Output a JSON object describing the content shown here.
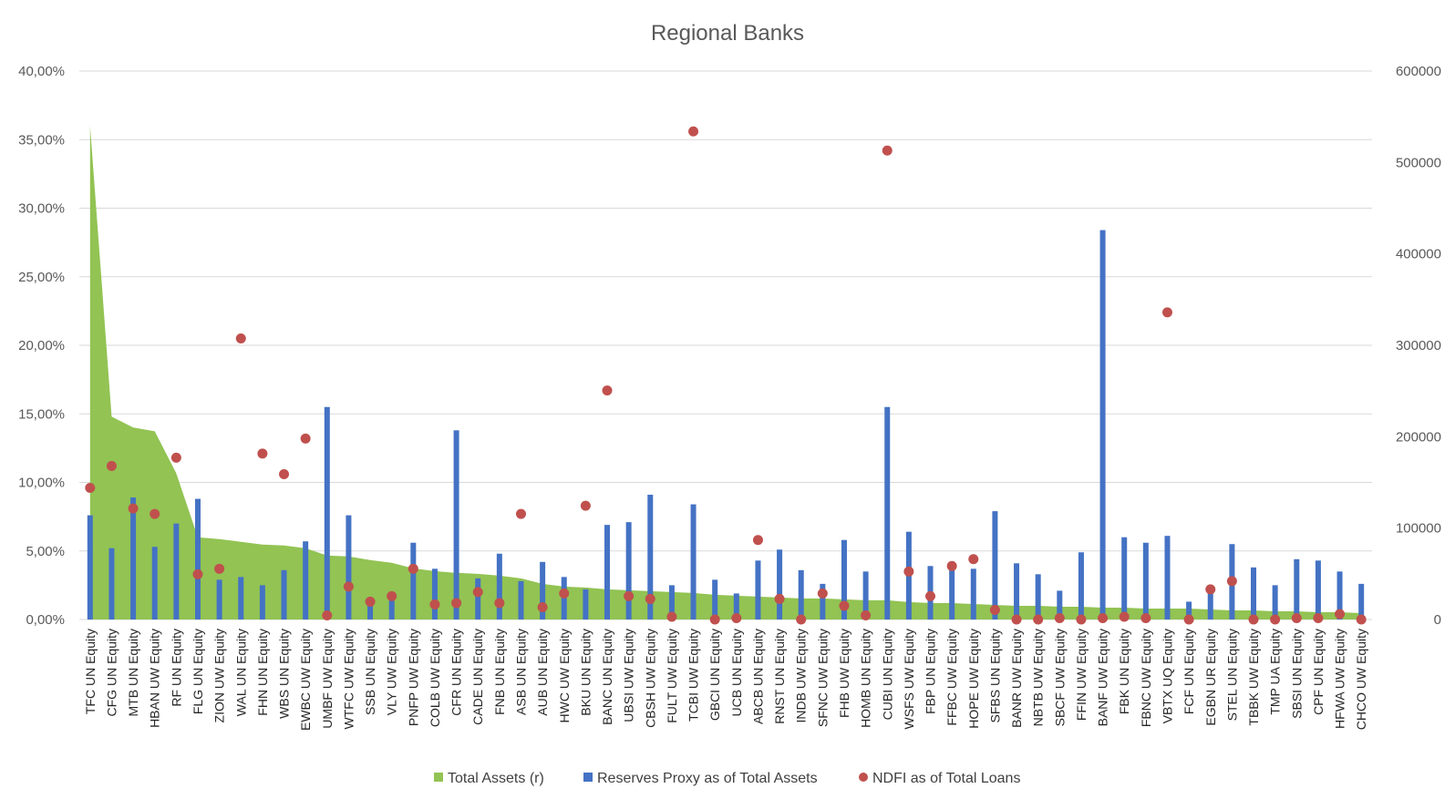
{
  "chart_data": {
    "type": "combo",
    "title": "Regional Banks",
    "categories": [
      "TFC UN Equity",
      "CFG UN Equity",
      "MTB UN Equity",
      "HBAN UW Equity",
      "RF UN Equity",
      "FLG UN Equity",
      "ZION UW Equity",
      "WAL UN Equity",
      "FHN UN Equity",
      "WBS UN Equity",
      "EWBC UW Equity",
      "UMBF UW Equity",
      "WTFC UW Equity",
      "SSB UN Equity",
      "VLY UW Equity",
      "PNFP UW Equity",
      "COLB UW Equity",
      "CFR UN Equity",
      "CADE UN Equity",
      "FNB UN Equity",
      "ASB UN Equity",
      "AUB UN Equity",
      "HWC UW Equity",
      "BKU UN Equity",
      "BANC UN Equity",
      "UBSI UW Equity",
      "CBSH UW Equity",
      "FULT UW Equity",
      "TCBI UW Equity",
      "GBCI UN Equity",
      "UCB UN Equity",
      "ABCB UN Equity",
      "RNST UN Equity",
      "INDB UW Equity",
      "SFNC UW Equity",
      "FHB UW Equity",
      "HOMB UN Equity",
      "CUBI UN Equity",
      "WSFS UW Equity",
      "FBP UN Equity",
      "FFBC UW Equity",
      "HOPE UW Equity",
      "SFBS UN Equity",
      "BANR UW Equity",
      "NBTB UW Equity",
      "SBCF UW Equity",
      "FFIN UW Equity",
      "BANF UW Equity",
      "FBK UN Equity",
      "FBNC UW Equity",
      "VBTX UQ Equity",
      "FCF UN Equity",
      "EGBN UR Equity",
      "STEL UN Equity",
      "TBBK UW Equity",
      "TMP UA Equity",
      "SBSI UN Equity",
      "CPF UN Equity",
      "HFWA UW Equity",
      "CHCO UW Equity"
    ],
    "y_left": {
      "min": 0,
      "max": 0.4,
      "ticks": [
        "0,00%",
        "5,00%",
        "10,00%",
        "15,00%",
        "20,00%",
        "25,00%",
        "30,00%",
        "35,00%",
        "40,00%"
      ]
    },
    "y_right": {
      "min": 0,
      "max": 600000,
      "ticks": [
        "0",
        "100000",
        "200000",
        "300000",
        "400000",
        "500000",
        "600000"
      ]
    },
    "grid": true,
    "legend_position": "bottom",
    "series": [
      {
        "name": "Total Assets (r)",
        "kind": "area",
        "axis": "right",
        "color": "#92c353",
        "values": [
          540000,
          222000,
          210000,
          206000,
          160000,
          90000,
          88000,
          85000,
          82000,
          81000,
          78000,
          70000,
          69000,
          65000,
          62000,
          56000,
          53000,
          51000,
          50000,
          48000,
          45000,
          39000,
          36000,
          35000,
          33000,
          32000,
          31000,
          30000,
          29000,
          27000,
          26000,
          25000,
          24000,
          23000,
          23000,
          22000,
          21000,
          21000,
          19000,
          18000,
          18000,
          17000,
          16000,
          15000,
          15000,
          14000,
          14000,
          13000,
          13000,
          12000,
          12000,
          12000,
          11000,
          10000,
          10000,
          9000,
          9000,
          8000,
          8000,
          7000
        ]
      },
      {
        "name": "Reserves Proxy as of Total Assets",
        "kind": "bar",
        "axis": "left",
        "color": "#4472c4",
        "values": [
          0.076,
          0.052,
          0.089,
          0.053,
          0.07,
          0.088,
          0.029,
          0.031,
          0.025,
          0.036,
          0.057,
          0.155,
          0.076,
          0.013,
          0.014,
          0.056,
          0.037,
          0.138,
          0.03,
          0.048,
          0.028,
          0.042,
          0.031,
          0.022,
          0.069,
          0.071,
          0.091,
          0.025,
          0.084,
          0.029,
          0.019,
          0.043,
          0.051,
          0.036,
          0.026,
          0.058,
          0.035,
          0.155,
          0.064,
          0.039,
          0.039,
          0.037,
          0.079,
          0.041,
          0.033,
          0.021,
          0.049,
          0.284,
          0.06,
          0.056,
          0.061,
          0.013,
          0.02,
          0.055,
          0.038,
          0.025,
          0.044,
          0.043,
          0.035,
          0.026
        ]
      },
      {
        "name": "NDFI as of Total Loans",
        "kind": "scatter",
        "axis": "left",
        "color": "#c0504d",
        "values": [
          0.096,
          0.112,
          0.081,
          0.077,
          0.118,
          0.033,
          0.037,
          0.205,
          0.121,
          0.106,
          0.132,
          0.003,
          0.024,
          0.013,
          0.017,
          0.037,
          0.011,
          0.012,
          0.02,
          0.012,
          0.077,
          0.009,
          0.019,
          0.083,
          0.167,
          0.017,
          0.015,
          0.002,
          0.356,
          0.0,
          0.001,
          0.058,
          0.015,
          0.0,
          0.019,
          0.01,
          0.003,
          0.342,
          0.035,
          0.017,
          0.039,
          0.044,
          0.007,
          0.0,
          0.0,
          0.001,
          0.0,
          0.001,
          0.002,
          0.001,
          0.224,
          0.0,
          0.022,
          0.028,
          0.0,
          0.0,
          0.001,
          0.001,
          0.004,
          0.0
        ]
      }
    ]
  }
}
